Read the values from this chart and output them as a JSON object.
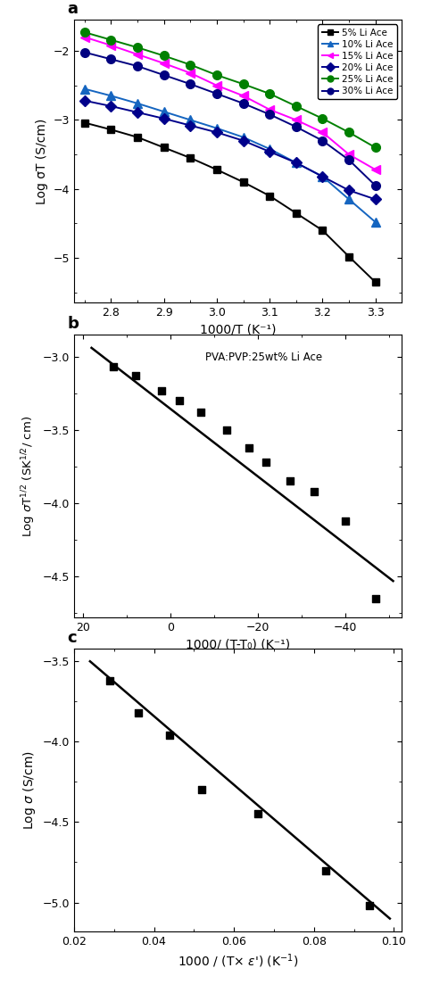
{
  "panel_a": {
    "xlabel": "1000/T (K⁻¹)",
    "ylabel": "Log σT (S/cm)",
    "xlim": [
      2.73,
      3.35
    ],
    "ylim": [
      -5.65,
      -1.55
    ],
    "xticks": [
      2.8,
      2.9,
      3.0,
      3.1,
      3.2,
      3.3
    ],
    "yticks": [
      -5,
      -4,
      -3,
      -2
    ],
    "series": [
      {
        "label": "5% Li Ace",
        "color": "#000000",
        "marker": "s",
        "x": [
          2.75,
          2.8,
          2.85,
          2.9,
          2.95,
          3.0,
          3.05,
          3.1,
          3.15,
          3.2,
          3.25,
          3.3
        ],
        "y_data": [
          -3.04,
          -3.14,
          -3.25,
          -3.4,
          -3.55,
          -3.72,
          -3.9,
          -4.1,
          -4.35,
          -4.6,
          -4.98,
          -5.35
        ]
      },
      {
        "label": "10% Li Ace",
        "color": "#1565c0",
        "marker": "^",
        "x": [
          2.75,
          2.8,
          2.85,
          2.9,
          2.95,
          3.0,
          3.05,
          3.1,
          3.15,
          3.2,
          3.25,
          3.3
        ],
        "y_data": [
          -2.55,
          -2.65,
          -2.76,
          -2.88,
          -3.0,
          -3.12,
          -3.25,
          -3.42,
          -3.62,
          -3.82,
          -4.15,
          -4.48
        ]
      },
      {
        "label": "15% Li Ace",
        "color": "#ff00ff",
        "marker": "<",
        "x": [
          2.75,
          2.8,
          2.85,
          2.9,
          2.95,
          3.0,
          3.05,
          3.1,
          3.15,
          3.2,
          3.25,
          3.3
        ],
        "y_data": [
          -1.8,
          -1.92,
          -2.05,
          -2.18,
          -2.32,
          -2.5,
          -2.65,
          -2.85,
          -3.0,
          -3.18,
          -3.5,
          -3.72
        ]
      },
      {
        "label": "20% Li Ace",
        "color": "#00008b",
        "marker": "D",
        "x": [
          2.75,
          2.8,
          2.85,
          2.9,
          2.95,
          3.0,
          3.05,
          3.1,
          3.15,
          3.2,
          3.25,
          3.3
        ],
        "y_data": [
          -2.72,
          -2.8,
          -2.89,
          -2.98,
          -3.08,
          -3.18,
          -3.3,
          -3.46,
          -3.62,
          -3.82,
          -4.02,
          -4.15
        ]
      },
      {
        "label": "25% Li Ace",
        "color": "#008000",
        "marker": "o",
        "x": [
          2.75,
          2.8,
          2.85,
          2.9,
          2.95,
          3.0,
          3.05,
          3.1,
          3.15,
          3.2,
          3.25,
          3.3
        ],
        "y_data": [
          -1.73,
          -1.84,
          -1.95,
          -2.07,
          -2.2,
          -2.35,
          -2.48,
          -2.62,
          -2.8,
          -2.98,
          -3.18,
          -3.4
        ]
      },
      {
        "label": "30% Li Ace",
        "color": "#000080",
        "marker": "o",
        "x": [
          2.75,
          2.8,
          2.85,
          2.9,
          2.95,
          3.0,
          3.05,
          3.1,
          3.15,
          3.2,
          3.25,
          3.3
        ],
        "y_data": [
          -2.02,
          -2.12,
          -2.22,
          -2.35,
          -2.48,
          -2.62,
          -2.76,
          -2.92,
          -3.1,
          -3.3,
          -3.58,
          -3.95
        ]
      }
    ]
  },
  "panel_b": {
    "xlabel": "1000/ (T-T₀) (K⁻¹)",
    "xlim": [
      22,
      -53
    ],
    "ylim": [
      -4.78,
      -2.85
    ],
    "xticks": [
      20,
      0,
      -20,
      -40
    ],
    "yticks": [
      -3.0,
      -3.5,
      -4.0,
      -4.5
    ],
    "annotation": "PVA:PVP:25wt% Li Ace",
    "scatter_x": [
      13.0,
      8.0,
      2.0,
      -2.0,
      -7.0,
      -13.0,
      -18.0,
      -22.0,
      -27.5,
      -33.0,
      -40.0,
      -47.0
    ],
    "scatter_y": [
      -3.07,
      -3.13,
      -3.23,
      -3.3,
      -3.38,
      -3.5,
      -3.62,
      -3.72,
      -3.85,
      -3.92,
      -4.12,
      -4.65
    ],
    "fit_x": [
      18,
      -51
    ],
    "fit_y": [
      -2.94,
      -4.53
    ]
  },
  "panel_c": {
    "xlim": [
      0.02,
      0.102
    ],
    "ylim": [
      -5.18,
      -3.42
    ],
    "xticks": [
      0.02,
      0.04,
      0.06,
      0.08,
      0.1
    ],
    "yticks": [
      -5.0,
      -4.5,
      -4.0,
      -3.5
    ],
    "scatter_x": [
      0.029,
      0.036,
      0.044,
      0.052,
      0.066,
      0.083,
      0.094
    ],
    "scatter_y": [
      -3.62,
      -3.82,
      -3.96,
      -4.3,
      -4.45,
      -4.8,
      -5.02
    ],
    "fit_x": [
      0.024,
      0.099
    ],
    "fit_y": [
      -3.5,
      -5.1
    ]
  }
}
